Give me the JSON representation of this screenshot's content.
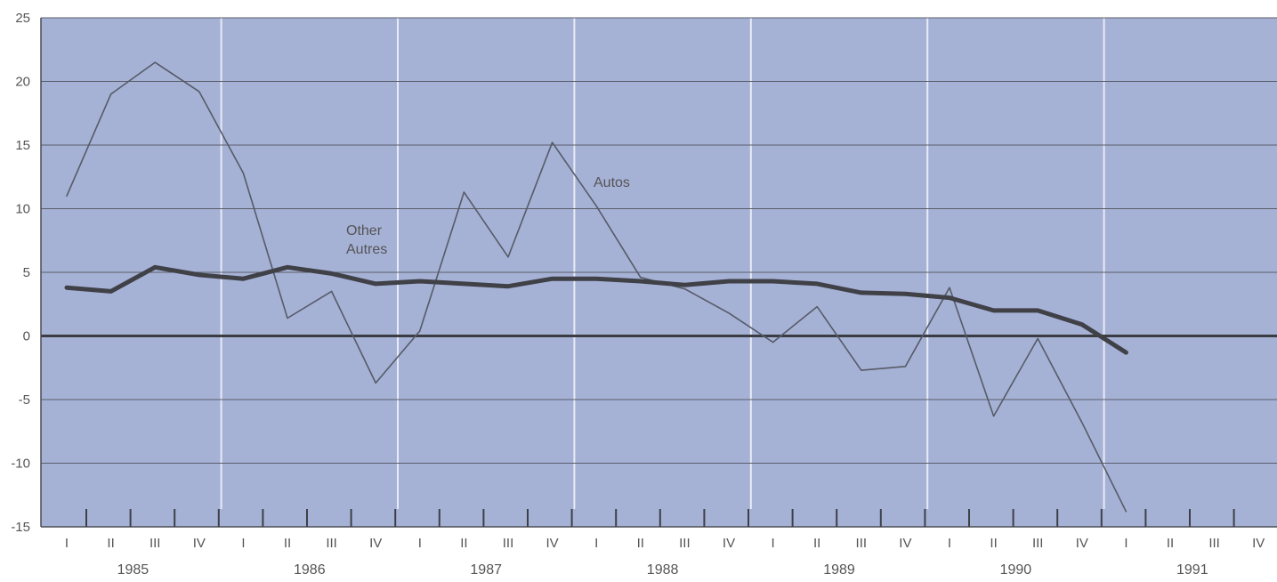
{
  "chart_data": {
    "type": "line",
    "title": "",
    "xlabel": "",
    "ylabel": "",
    "ylim": [
      -15,
      25
    ],
    "yticks": [
      25,
      20,
      15,
      10,
      5,
      0,
      -5,
      -10,
      -15
    ],
    "ytick_labels": [
      "25",
      "20",
      "15",
      "10",
      "5",
      "0",
      "-5",
      "-10",
      "-15"
    ],
    "grid": true,
    "years": [
      "1985",
      "1986",
      "1987",
      "1988",
      "1989",
      "1990",
      "1991"
    ],
    "quarter_labels": [
      "I",
      "II",
      "III",
      "IV",
      "I",
      "II",
      "III",
      "IV",
      "I",
      "II",
      "III",
      "IV",
      "I",
      "II",
      "III",
      "IV",
      "I",
      "II",
      "III",
      "IV",
      "I",
      "II",
      "III",
      "IV",
      "I",
      "II",
      "III",
      "IV"
    ],
    "x": [
      "1985 I",
      "1985 II",
      "1985 III",
      "1985 IV",
      "1986 I",
      "1986 II",
      "1986 III",
      "1986 IV",
      "1987 I",
      "1987 II",
      "1987 III",
      "1987 IV",
      "1988 I",
      "1988 II",
      "1988 III",
      "1988 IV",
      "1989 I",
      "1989 II",
      "1989 III",
      "1989 IV",
      "1990 I",
      "1990 II",
      "1990 III",
      "1990 IV",
      "1991 I",
      "1991 II",
      "1991 III",
      "1991 IV"
    ],
    "annotations": {
      "autos": "Autos",
      "other_line1": "Other",
      "other_line2": "Autres"
    },
    "series": [
      {
        "name": "Autos",
        "color": "#555b66",
        "values": [
          11,
          19,
          21.5,
          19.2,
          12.8,
          1.4,
          3.5,
          -3.7,
          0.4,
          11.3,
          6.2,
          15.2,
          10.2,
          4.6,
          3.7,
          1.8,
          -0.5,
          2.3,
          -2.7,
          -2.4,
          3.8,
          -6.3,
          -0.2,
          -6.8,
          -13.8,
          null,
          null,
          null
        ]
      },
      {
        "name": "Other / Autres",
        "color": "#3f4147",
        "values": [
          3.8,
          3.5,
          5.4,
          4.8,
          4.5,
          5.4,
          4.9,
          4.1,
          4.3,
          4.1,
          3.9,
          4.5,
          4.5,
          4.3,
          4.0,
          4.3,
          4.3,
          4.1,
          3.4,
          3.3,
          3.0,
          2.0,
          2.0,
          0.9,
          -1.3,
          null,
          null,
          null
        ]
      }
    ]
  }
}
